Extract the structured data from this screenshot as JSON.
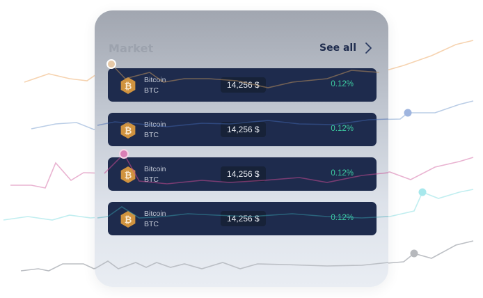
{
  "market": {
    "title": "Market",
    "see_all_label": "See all",
    "rows": [
      {
        "name": "Bitcoin",
        "symbol": "BTC",
        "price": "14,256 $",
        "change": "0.12%"
      },
      {
        "name": "Bitcoin",
        "symbol": "BTC",
        "price": "14,256 $",
        "change": "0.12%"
      },
      {
        "name": "Bitcoin",
        "symbol": "BTC",
        "price": "14,256 $",
        "change": "0.12%"
      },
      {
        "name": "Bitcoin",
        "symbol": "BTC",
        "price": "14,256 $",
        "change": "0.12%"
      }
    ]
  },
  "icons": {
    "coin": "bitcoin-coin-icon",
    "see_all": "chevron-right-icon"
  },
  "colors": {
    "row_bg": "#1e2b4d",
    "positive": "#3ecfa3",
    "coin": "#d0933f",
    "line_orange": "#f3c9a0",
    "line_blue": "#a9bfe0",
    "line_pink": "#e08ab9",
    "line_cyan": "#9fe4e8",
    "line_gray": "#b9bcc2"
  }
}
